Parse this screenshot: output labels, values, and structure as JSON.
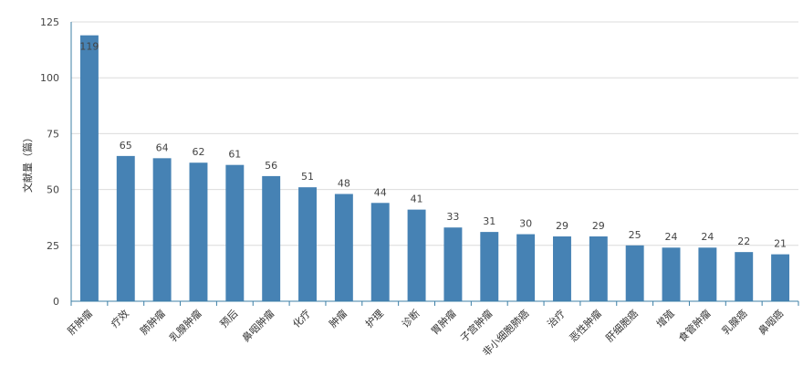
{
  "chart_data": {
    "type": "bar",
    "title": "",
    "xlabel": "",
    "ylabel": "文献量（篇）",
    "ylim": [
      0,
      125
    ],
    "yticks": [
      0,
      25,
      50,
      75,
      100,
      125
    ],
    "grid": true,
    "bar_color": "#4682b4",
    "categories": [
      "肝肿瘤",
      "疗效",
      "肺肿瘤",
      "乳腺肿瘤",
      "预后",
      "鼻咽肿瘤",
      "化疗",
      "肿瘤",
      "护理",
      "诊断",
      "胃肿瘤",
      "子宫肿瘤",
      "非小细胞肺癌",
      "治疗",
      "恶性肿瘤",
      "肝细胞癌",
      "增殖",
      "食管肿瘤",
      "乳腺癌",
      "鼻咽癌"
    ],
    "values": [
      119,
      65,
      64,
      62,
      61,
      56,
      51,
      48,
      44,
      41,
      33,
      31,
      30,
      29,
      29,
      25,
      24,
      24,
      22,
      21
    ]
  }
}
